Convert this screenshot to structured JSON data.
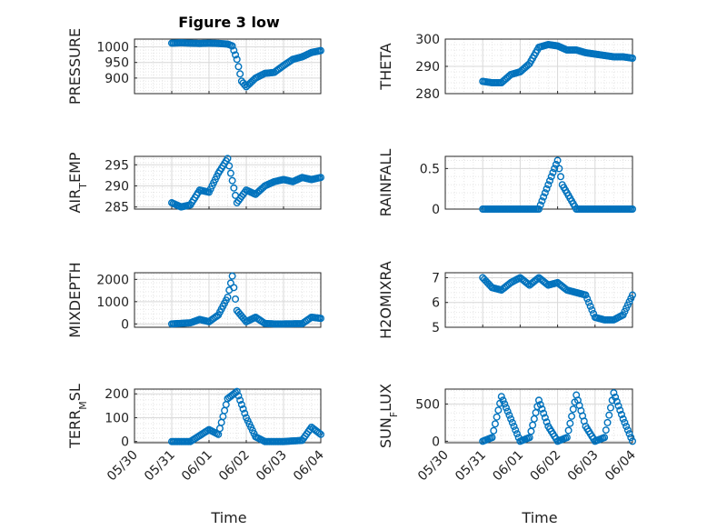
{
  "figure": {
    "title": "Figure 3 low",
    "xlabel": "Time",
    "x_ticklabels": [
      "05/30",
      "05/31",
      "06/01",
      "06/02",
      "06/03",
      "06/04"
    ],
    "marker_color": "#0072bd"
  },
  "chart_data": [
    {
      "type": "scatter",
      "ylabel": "PRESSURE",
      "ylim": [
        850,
        1025
      ],
      "yticks": [
        900,
        950,
        1000
      ],
      "x": [
        "05/31 00:00",
        "05/31 06:00",
        "05/31 12:00",
        "05/31 18:00",
        "06/01 00:00",
        "06/01 06:00",
        "06/01 12:00",
        "06/01 15:00",
        "06/01 18:00",
        "06/01 21:00",
        "06/02 00:00",
        "06/02 06:00",
        "06/02 12:00",
        "06/02 18:00",
        "06/03 00:00",
        "06/03 06:00",
        "06/03 12:00",
        "06/03 18:00",
        "06/04 00:00"
      ],
      "y": [
        1012,
        1013,
        1012,
        1011,
        1012,
        1011,
        1009,
        1003,
        960,
        890,
        872,
        900,
        915,
        918,
        940,
        960,
        968,
        982,
        988
      ]
    },
    {
      "type": "scatter",
      "ylabel": "THETA",
      "ylim": [
        280,
        300
      ],
      "yticks": [
        280,
        290,
        300
      ],
      "x": [
        "05/31 00:00",
        "05/31 06:00",
        "05/31 12:00",
        "05/31 18:00",
        "06/01 00:00",
        "06/01 06:00",
        "06/01 12:00",
        "06/01 18:00",
        "06/02 00:00",
        "06/02 06:00",
        "06/02 12:00",
        "06/02 18:00",
        "06/03 00:00",
        "06/03 06:00",
        "06/03 12:00",
        "06/03 18:00",
        "06/04 00:00"
      ],
      "y": [
        284.5,
        284,
        284,
        287,
        288,
        291,
        297,
        298,
        297.5,
        296,
        296,
        295,
        294.5,
        294,
        293.5,
        293.5,
        293
      ]
    },
    {
      "type": "scatter",
      "ylabel": "AIR_TEMP",
      "ylim": [
        284.5,
        297
      ],
      "yticks": [
        285,
        290,
        295
      ],
      "x": [
        "05/31 00:00",
        "05/31 06:00",
        "05/31 12:00",
        "05/31 18:00",
        "06/01 00:00",
        "06/01 06:00",
        "06/01 12:00",
        "06/01 18:00",
        "06/02 00:00",
        "06/02 06:00",
        "06/02 12:00",
        "06/02 18:00",
        "06/03 00:00",
        "06/03 06:00",
        "06/03 12:00",
        "06/03 18:00",
        "06/04 00:00"
      ],
      "y": [
        286,
        285,
        285.5,
        289,
        288.5,
        293,
        296.5,
        286,
        289,
        288,
        290,
        291,
        291.5,
        291,
        292,
        291.5,
        292
      ]
    },
    {
      "type": "scatter",
      "ylabel": "RAINFALL",
      "ylim": [
        0,
        0.65
      ],
      "yticks": [
        0,
        0.5
      ],
      "x": [
        "05/31 00:00",
        "05/31 12:00",
        "06/01 00:00",
        "06/01 12:00",
        "06/02 00:00",
        "06/02 03:00",
        "06/02 06:00",
        "06/02 09:00",
        "06/02 12:00",
        "06/03 00:00",
        "06/03 12:00",
        "06/04 00:00"
      ],
      "y": [
        0,
        0,
        0,
        0,
        0.6,
        0.3,
        0.2,
        0.1,
        0,
        0,
        0,
        0
      ]
    },
    {
      "type": "scatter",
      "ylabel": "MIXDEPTH",
      "ylim": [
        -150,
        2300
      ],
      "yticks": [
        0,
        1000,
        2000
      ],
      "x": [
        "05/31 00:00",
        "05/31 12:00",
        "05/31 18:00",
        "06/01 00:00",
        "06/01 06:00",
        "06/01 12:00",
        "06/01 15:00",
        "06/01 18:00",
        "06/02 00:00",
        "06/02 06:00",
        "06/02 12:00",
        "06/02 18:00",
        "06/03 00:00",
        "06/03 12:00",
        "06/03 18:00",
        "06/04 00:00"
      ],
      "y": [
        0,
        50,
        200,
        100,
        400,
        1200,
        2150,
        600,
        100,
        300,
        20,
        0,
        0,
        10,
        300,
        250
      ]
    },
    {
      "type": "scatter",
      "ylabel": "H2OMIXRA",
      "ylim": [
        5,
        7.2
      ],
      "yticks": [
        5,
        6,
        7
      ],
      "x": [
        "05/31 00:00",
        "05/31 06:00",
        "05/31 12:00",
        "05/31 18:00",
        "06/01 00:00",
        "06/01 06:00",
        "06/01 12:00",
        "06/01 18:00",
        "06/02 00:00",
        "06/02 06:00",
        "06/02 12:00",
        "06/02 18:00",
        "06/03 00:00",
        "06/03 06:00",
        "06/03 12:00",
        "06/03 18:00",
        "06/04 00:00"
      ],
      "y": [
        7,
        6.6,
        6.5,
        6.8,
        7,
        6.7,
        7,
        6.7,
        6.8,
        6.5,
        6.4,
        6.3,
        5.4,
        5.3,
        5.3,
        5.5,
        6.3
      ]
    },
    {
      "type": "scatter",
      "ylabel": "TERR_MSL",
      "ylim": [
        -5,
        220
      ],
      "yticks": [
        0,
        100,
        200
      ],
      "x": [
        "05/31 00:00",
        "05/31 12:00",
        "06/01 00:00",
        "06/01 06:00",
        "06/01 12:00",
        "06/01 18:00",
        "06/02 00:00",
        "06/02 06:00",
        "06/02 12:00",
        "06/03 00:00",
        "06/03 12:00",
        "06/03 18:00",
        "06/04 00:00"
      ],
      "y": [
        0,
        0,
        50,
        30,
        180,
        210,
        100,
        20,
        0,
        0,
        5,
        60,
        30
      ]
    },
    {
      "type": "scatter",
      "ylabel": "SUN_FLUX",
      "ylim": [
        -20,
        700
      ],
      "yticks": [
        0,
        500
      ],
      "x": [
        "05/31 00:00",
        "05/31 06:00",
        "05/31 12:00",
        "05/31 18:00",
        "06/01 00:00",
        "06/01 06:00",
        "06/01 12:00",
        "06/01 18:00",
        "06/02 00:00",
        "06/02 06:00",
        "06/02 12:00",
        "06/02 18:00",
        "06/03 00:00",
        "06/03 06:00",
        "06/03 12:00",
        "06/03 18:00",
        "06/04 00:00"
      ],
      "y": [
        0,
        50,
        600,
        300,
        0,
        50,
        550,
        200,
        0,
        50,
        620,
        200,
        0,
        50,
        650,
        300,
        0
      ]
    }
  ]
}
